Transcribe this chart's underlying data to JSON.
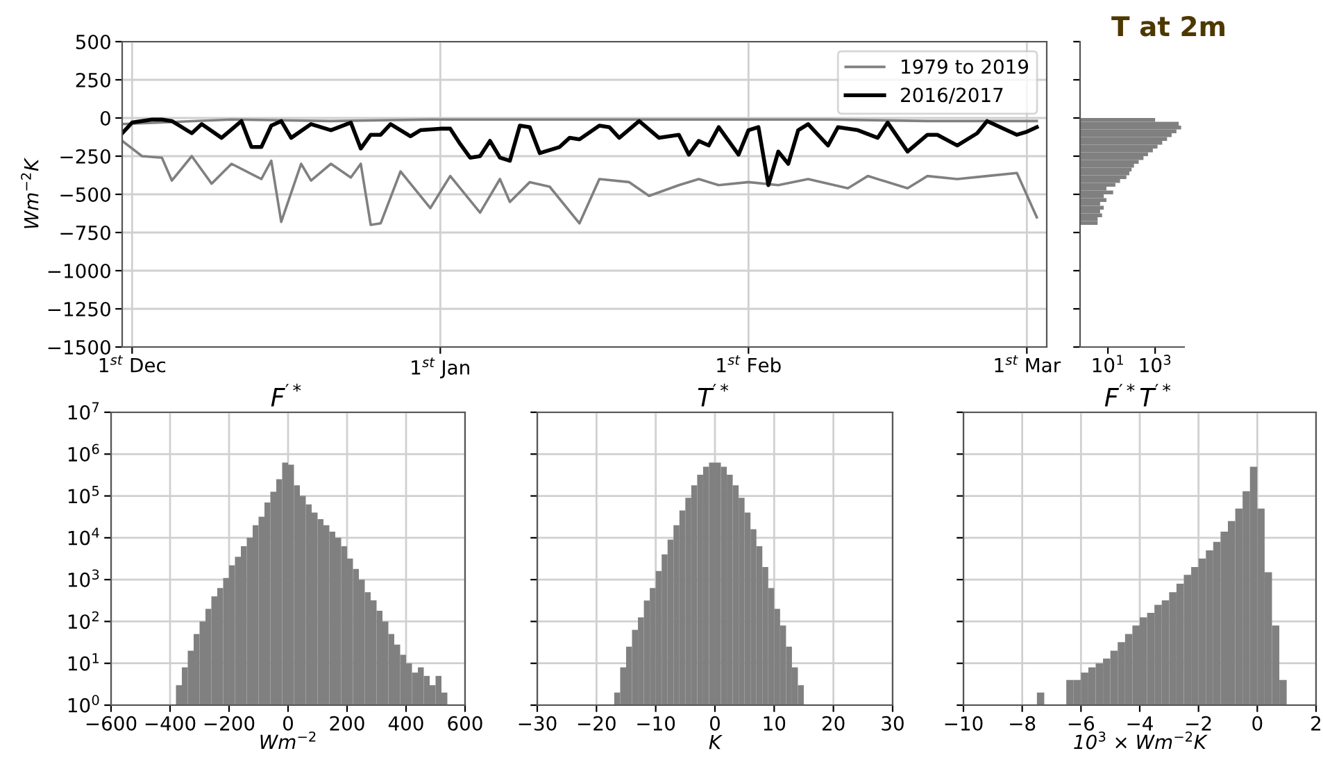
{
  "chart_data": [
    {
      "type": "line",
      "ylabel": "Wm$^{−2}$K",
      "xlim": [
        "2016-11-30",
        "2017-03-03"
      ],
      "ylim": [
        -1500,
        500
      ],
      "xticks": [
        {
          "value": "2016-12-01",
          "label": "1$^{st}$ Dec"
        },
        {
          "value": "2017-01-01",
          "label": "1$^{st}$ Jan"
        },
        {
          "value": "2017-02-01",
          "label": "1$^{st}$ Feb"
        },
        {
          "value": "2017-03-01",
          "label": "1$^{st}$ Mar"
        }
      ],
      "yticks": [
        -1500,
        -1250,
        -1000,
        -750,
        -500,
        -250,
        0,
        250,
        500
      ],
      "grid": true,
      "legend": "top right",
      "series": [
        {
          "name": "1979 to 2019",
          "color": "#808080",
          "x": [
            "2016-11-30",
            "2016-12-02",
            "2016-12-04",
            "2016-12-05",
            "2016-12-07",
            "2016-12-09",
            "2016-12-11",
            "2016-12-14",
            "2016-12-15",
            "2016-12-16",
            "2016-12-18",
            "2016-12-19",
            "2016-12-21",
            "2016-12-23",
            "2016-12-24",
            "2016-12-25",
            "2016-12-26",
            "2016-12-28",
            "2016-12-31",
            "2017-01-02",
            "2017-01-05",
            "2017-01-07",
            "2017-01-08",
            "2017-01-10",
            "2017-01-12",
            "2017-01-15",
            "2017-01-17",
            "2017-01-20",
            "2017-01-22",
            "2017-01-25",
            "2017-01-27",
            "2017-01-29",
            "2017-02-01",
            "2017-02-04",
            "2017-02-07",
            "2017-02-11",
            "2017-02-13",
            "2017-02-17",
            "2017-02-19",
            "2017-02-22",
            "2017-02-25",
            "2017-02-28",
            "2017-03-02"
          ],
          "values": [
            -150,
            -250,
            -260,
            -410,
            -250,
            -430,
            -300,
            -400,
            -280,
            -680,
            -300,
            -410,
            -300,
            -390,
            -300,
            -700,
            -690,
            -350,
            -590,
            -380,
            -620,
            -400,
            -550,
            -420,
            -450,
            -690,
            -400,
            -420,
            -510,
            -440,
            -400,
            -440,
            -420,
            -440,
            -400,
            -460,
            -380,
            -460,
            -380,
            -400,
            -380,
            -360,
            -650
          ]
        },
        {
          "color": "#808080",
          "x": [
            "2016-11-30",
            "2016-12-11",
            "2016-12-21",
            "2016-12-31",
            "2017-01-10",
            "2017-01-20",
            "2017-01-30",
            "2017-02-09",
            "2017-02-19",
            "2017-03-02"
          ],
          "values": [
            -40,
            -10,
            -20,
            -10,
            -10,
            -10,
            -10,
            -10,
            -20,
            -20
          ]
        },
        {
          "name": "2016/2017",
          "color": "#000000",
          "x": [
            "2016-11-30",
            "2016-12-01",
            "2016-12-03",
            "2016-12-04",
            "2016-12-05",
            "2016-12-07",
            "2016-12-08",
            "2016-12-10",
            "2016-12-12",
            "2016-12-13",
            "2016-12-14",
            "2016-12-15",
            "2016-12-16",
            "2016-12-17",
            "2016-12-19",
            "2016-12-21",
            "2016-12-23",
            "2016-12-24",
            "2016-12-25",
            "2016-12-26",
            "2016-12-27",
            "2016-12-29",
            "2016-12-30",
            "2017-01-01",
            "2017-01-02",
            "2017-01-03",
            "2017-01-04",
            "2017-01-05",
            "2017-01-06",
            "2017-01-07",
            "2017-01-08",
            "2017-01-09",
            "2017-01-10",
            "2017-01-11",
            "2017-01-13",
            "2017-01-14",
            "2017-01-15",
            "2017-01-17",
            "2017-01-18",
            "2017-01-19",
            "2017-01-21",
            "2017-01-23",
            "2017-01-25",
            "2017-01-26",
            "2017-01-27",
            "2017-01-28",
            "2017-01-29",
            "2017-01-31",
            "2017-02-01",
            "2017-02-02",
            "2017-02-03",
            "2017-02-04",
            "2017-02-05",
            "2017-02-06",
            "2017-02-07",
            "2017-02-09",
            "2017-02-10",
            "2017-02-12",
            "2017-02-14",
            "2017-02-15",
            "2017-02-17",
            "2017-02-19",
            "2017-02-20",
            "2017-02-22",
            "2017-02-24",
            "2017-02-25",
            "2017-02-28",
            "2017-03-01",
            "2017-03-02"
          ],
          "values": [
            -100,
            -30,
            -10,
            -10,
            -20,
            -100,
            -40,
            -130,
            -20,
            -190,
            -190,
            -50,
            -20,
            -130,
            -40,
            -80,
            -30,
            -200,
            -110,
            -110,
            -40,
            -120,
            -80,
            -70,
            -70,
            -170,
            -260,
            -250,
            -150,
            -260,
            -280,
            -50,
            -60,
            -230,
            -190,
            -130,
            -140,
            -50,
            -60,
            -130,
            -20,
            -130,
            -110,
            -240,
            -150,
            -180,
            -60,
            -240,
            -80,
            -60,
            -440,
            -220,
            -300,
            -80,
            -40,
            -180,
            -60,
            -80,
            -130,
            -30,
            -220,
            -110,
            -110,
            -180,
            -100,
            -20,
            -110,
            -90,
            -60
          ]
        }
      ]
    },
    {
      "type": "histogram",
      "title": "T at 2m",
      "orientation": "horizontal",
      "color": "#808080",
      "log": "x",
      "tick_labels": "x",
      "xlim": [
        0.66,
        17000
      ],
      "ylim": [
        -1500,
        500
      ],
      "xticks": [
        {
          "value": 10,
          "label": "10$^{1}$"
        },
        {
          "value": 1000,
          "label": "10$^{3}$"
        }
      ],
      "yticks": [
        -1500,
        -1250,
        -1000,
        -750,
        -500,
        -250,
        0,
        250,
        500
      ],
      "bins": [
        -700,
        -675,
        -650,
        -625,
        -600,
        -575,
        -550,
        -525,
        -500,
        -475,
        -450,
        -425,
        -400,
        -375,
        -350,
        -325,
        -300,
        -275,
        -250,
        -225,
        -200,
        -175,
        -150,
        -125,
        -100,
        -75,
        -50,
        -25,
        0
      ],
      "values": [
        3,
        3,
        5,
        4,
        6,
        4,
        8,
        6,
        16,
        8,
        20,
        32,
        60,
        80,
        100,
        126,
        200,
        320,
        500,
        800,
        1260,
        2000,
        3200,
        5000,
        8000,
        12600,
        10000,
        1000
      ]
    },
    {
      "type": "histogram",
      "title": "F$^{′*}$",
      "xlabel": "Wm$^{−2}$",
      "color": "#808080",
      "log": "y",
      "grid": true,
      "xlim": [
        -600,
        600
      ],
      "ylim": [
        1,
        10000000
      ],
      "xticks": [
        -600,
        -400,
        -200,
        0,
        200,
        400,
        600
      ],
      "yticks": [
        {
          "value": 1,
          "label": "10$^{0}$"
        },
        {
          "value": 10,
          "label": "10$^{1}$"
        },
        {
          "value": 100,
          "label": "10$^{2}$"
        },
        {
          "value": 1000,
          "label": "10$^{3}$"
        },
        {
          "value": 10000,
          "label": "10$^{4}$"
        },
        {
          "value": 100000,
          "label": "10$^{5}$"
        },
        {
          "value": 1000000,
          "label": "10$^{6}$"
        },
        {
          "value": 10000000,
          "label": "10$^{7}$"
        }
      ],
      "bins": [
        -380,
        -360,
        -340,
        -320,
        -300,
        -280,
        -260,
        -240,
        -220,
        -200,
        -180,
        -160,
        -140,
        -120,
        -100,
        -80,
        -60,
        -40,
        -20,
        0,
        20,
        40,
        60,
        80,
        100,
        120,
        140,
        160,
        180,
        200,
        220,
        240,
        260,
        280,
        300,
        320,
        340,
        360,
        380,
        400,
        420,
        440,
        460,
        480,
        500,
        520,
        540
      ],
      "values": [
        3,
        8,
        20,
        50,
        100,
        200,
        400,
        630,
        1100,
        2200,
        3500,
        6300,
        10000,
        20000,
        32000,
        70000,
        126000,
        250000,
        630000,
        560000,
        180000,
        100000,
        63000,
        40000,
        28000,
        20000,
        14000,
        10000,
        6300,
        3200,
        1800,
        1000,
        500,
        320,
        180,
        100,
        50,
        28,
        16,
        10,
        6,
        8,
        5,
        3,
        5,
        2
      ]
    },
    {
      "type": "histogram",
      "title": "T$^{′*}$",
      "xlabel": "K",
      "color": "#808080",
      "log": "y",
      "grid": true,
      "tick_labels": "x",
      "xlim": [
        -30,
        30
      ],
      "ylim": [
        1,
        10000000
      ],
      "xticks": [
        -30,
        -20,
        -10,
        0,
        10,
        20,
        30
      ],
      "yticks": [
        1,
        10,
        100,
        1000,
        10000,
        100000,
        1000000,
        10000000
      ],
      "bins": [
        -17,
        -16,
        -15,
        -14,
        -13,
        -12,
        -11,
        -10,
        -9,
        -8,
        -7,
        -6,
        -5,
        -4,
        -3,
        -2,
        -1,
        0,
        1,
        2,
        3,
        4,
        5,
        6,
        7,
        8,
        9,
        10,
        11,
        12,
        13,
        14,
        15
      ],
      "values": [
        2,
        8,
        25,
        63,
        126,
        316,
        630,
        1600,
        4000,
        9000,
        20000,
        45000,
        90000,
        180000,
        320000,
        500000,
        630000,
        630000,
        500000,
        320000,
        180000,
        90000,
        40000,
        16000,
        6300,
        2000,
        630,
        200,
        80,
        25,
        8,
        3
      ]
    },
    {
      "type": "histogram",
      "title": "F$^{′*}$T$^{′*}$",
      "xlabel": "10$^{3}$ × Wm$^{−2}$K",
      "color": "#808080",
      "log": "y",
      "grid": true,
      "tick_labels": "x",
      "xlim": [
        -10,
        2
      ],
      "ylim": [
        1,
        10000000
      ],
      "xticks": [
        -10,
        -8,
        -6,
        -4,
        -2,
        0,
        2
      ],
      "yticks": [
        1,
        10,
        100,
        1000,
        10000,
        100000,
        1000000,
        10000000
      ],
      "bins": [
        -7.5,
        -7.25,
        -7,
        -6.75,
        -6.5,
        -6.25,
        -6,
        -5.75,
        -5.5,
        -5.25,
        -5,
        -4.75,
        -4.5,
        -4.25,
        -4,
        -3.75,
        -3.5,
        -3.25,
        -3,
        -2.75,
        -2.5,
        -2.25,
        -2,
        -1.75,
        -1.5,
        -1.25,
        -1,
        -0.75,
        -0.5,
        -0.25,
        0,
        0.25,
        0.5,
        0.75,
        1
      ],
      "values": [
        2,
        null,
        null,
        null,
        4,
        4,
        6,
        8,
        10,
        13,
        20,
        32,
        50,
        80,
        126,
        160,
        250,
        320,
        500,
        800,
        1300,
        2000,
        3200,
        5000,
        8000,
        14000,
        25000,
        50000,
        130000,
        500000,
        50000,
        1500,
        80,
        4
      ]
    }
  ]
}
